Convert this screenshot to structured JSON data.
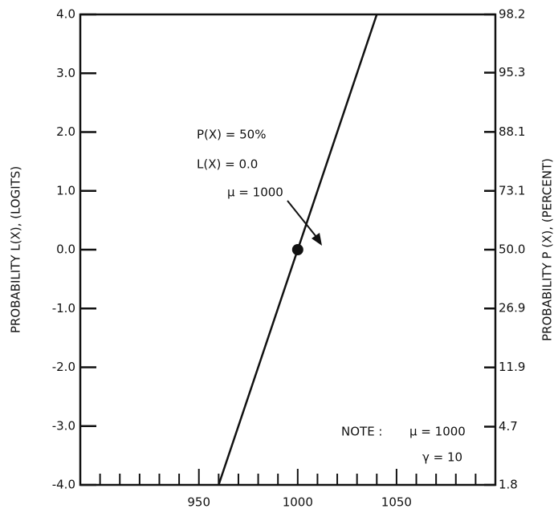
{
  "chart_data": {
    "type": "line",
    "y_label": "PROBABILITY L(X), (LOGITS)",
    "y2_label": "PROBABILITY P (X), (PERCENT)",
    "xlim": [
      890,
      1100
    ],
    "xticks": [
      950,
      1000,
      1050
    ],
    "xminorticks": [
      900,
      910,
      920,
      930,
      940,
      960,
      970,
      980,
      990,
      1010,
      1020,
      1030,
      1040,
      1060,
      1070,
      1080,
      1090
    ],
    "ylim": [
      -4,
      4
    ],
    "yticks": [
      {
        "value": -4,
        "label": "-4.0"
      },
      {
        "value": -3,
        "label": "-3.0"
      },
      {
        "value": -2,
        "label": "-2.0"
      },
      {
        "value": -1,
        "label": "-1.0"
      },
      {
        "value": 0,
        "label": "0.0"
      },
      {
        "value": 1,
        "label": "1.0"
      },
      {
        "value": 2,
        "label": "2.0"
      },
      {
        "value": 3,
        "label": "3.0"
      },
      {
        "value": 4,
        "label": "4.0"
      }
    ],
    "y2scale": "logit",
    "y2lim": [
      1.8,
      98.2
    ],
    "y2ticks": [
      1.8,
      4.7,
      11.9,
      26.9,
      {
        "value": 50,
        "label": "50.0"
      },
      73.1,
      88.1,
      95.3,
      98.2
    ],
    "series": [
      {
        "x": [
          960,
          1040
        ],
        "values": [
          -4,
          4
        ],
        "color": "#111111"
      },
      {
        "x": [
          1000
        ],
        "values": [
          0
        ],
        "color": "#111111",
        "marker": true
      }
    ],
    "annotations": [
      "P(X) = 50%",
      "L(X) = 0.0",
      "μ = 1000",
      "NOTE :",
      "μ = 1000",
      "γ = 10"
    ]
  }
}
